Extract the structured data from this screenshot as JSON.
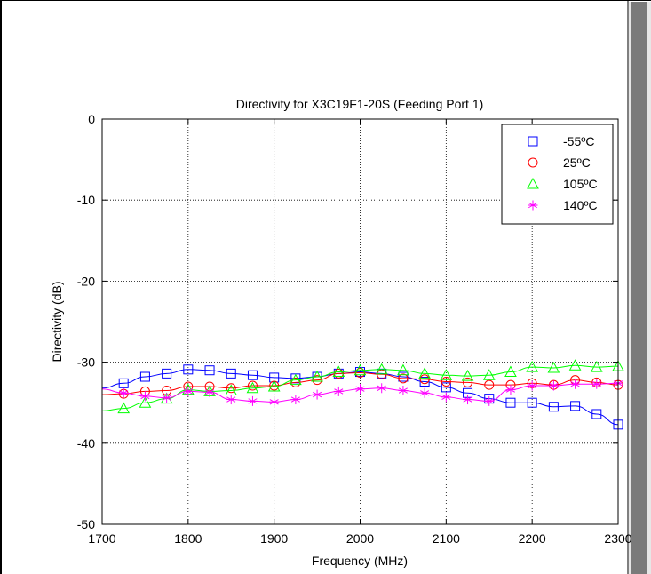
{
  "chart_data": {
    "type": "line",
    "title": "Directivity for X3C19F1-20S (Feeding Port 1)",
    "xlabel": "Frequency (MHz)",
    "ylabel": "Directivity (dB)",
    "xlim": [
      1700,
      2300
    ],
    "ylim": [
      -50,
      0
    ],
    "xticks": [
      1700,
      1800,
      1900,
      2000,
      2100,
      2200,
      2300
    ],
    "xtick_labels": [
      "1700",
      "1800",
      "1900",
      "2000",
      "2100",
      "2200",
      "2300"
    ],
    "yticks": [
      0,
      -10,
      -20,
      -30,
      -40,
      -50
    ],
    "ytick_labels": [
      "0",
      "-10",
      "-20",
      "-30",
      "-40",
      "-50"
    ],
    "grid": true,
    "legend_position": "top-right",
    "series": [
      {
        "name": "-55ºC",
        "color": "#0000ff",
        "marker": "square",
        "x": [
          1700,
          1725,
          1750,
          1775,
          1800,
          1825,
          1850,
          1875,
          1900,
          1925,
          1950,
          1975,
          2000,
          2025,
          2050,
          2075,
          2100,
          2125,
          2150,
          2175,
          2200,
          2225,
          2250,
          2275,
          2300
        ],
        "y": [
          -33.2,
          -32.6,
          -31.8,
          -31.4,
          -30.9,
          -31.0,
          -31.4,
          -31.6,
          -31.9,
          -32.0,
          -31.8,
          -31.4,
          -31.2,
          -31.4,
          -31.8,
          -32.4,
          -33.1,
          -33.8,
          -34.5,
          -35.0,
          -35.0,
          -35.5,
          -35.4,
          -36.4,
          -37.7
        ]
      },
      {
        "name": "25ºC",
        "color": "#ff0000",
        "marker": "circle",
        "x": [
          1700,
          1725,
          1750,
          1775,
          1800,
          1825,
          1850,
          1875,
          1900,
          1925,
          1950,
          1975,
          2000,
          2025,
          2050,
          2075,
          2100,
          2125,
          2150,
          2175,
          2200,
          2225,
          2250,
          2275,
          2300
        ],
        "y": [
          -34.0,
          -33.9,
          -33.6,
          -33.5,
          -33.0,
          -33.0,
          -33.2,
          -32.9,
          -32.9,
          -32.5,
          -32.2,
          -31.4,
          -31.3,
          -31.5,
          -32.0,
          -32.1,
          -32.4,
          -32.5,
          -32.8,
          -32.8,
          -32.6,
          -32.8,
          -32.2,
          -32.5,
          -32.8
        ]
      },
      {
        "name": "105ºC",
        "color": "#00ff00",
        "marker": "triangle",
        "x": [
          1700,
          1725,
          1750,
          1775,
          1800,
          1825,
          1850,
          1875,
          1900,
          1925,
          1950,
          1975,
          2000,
          2025,
          2050,
          2075,
          2100,
          2125,
          2150,
          2175,
          2200,
          2225,
          2250,
          2275,
          2300
        ],
        "y": [
          -36.0,
          -35.7,
          -35.0,
          -34.5,
          -33.4,
          -33.6,
          -33.5,
          -33.2,
          -33.0,
          -32.2,
          -31.8,
          -31.2,
          -31.0,
          -30.9,
          -31.0,
          -31.4,
          -31.6,
          -31.7,
          -31.6,
          -31.2,
          -30.6,
          -30.7,
          -30.4,
          -30.6,
          -30.5
        ]
      },
      {
        "name": "140ºC",
        "color": "#ff00ff",
        "marker": "star",
        "x": [
          1700,
          1725,
          1750,
          1775,
          1800,
          1825,
          1850,
          1875,
          1900,
          1925,
          1950,
          1975,
          2000,
          2025,
          2050,
          2075,
          2100,
          2125,
          2150,
          2175,
          2200,
          2225,
          2250,
          2275,
          2300
        ],
        "y": [
          -33.3,
          -33.8,
          -34.2,
          -34.4,
          -33.6,
          -33.7,
          -34.6,
          -34.8,
          -34.9,
          -34.6,
          -34.0,
          -33.6,
          -33.3,
          -33.2,
          -33.5,
          -33.8,
          -34.3,
          -34.6,
          -34.8,
          -33.4,
          -32.9,
          -32.9,
          -32.7,
          -32.7,
          -32.6
        ]
      }
    ]
  }
}
